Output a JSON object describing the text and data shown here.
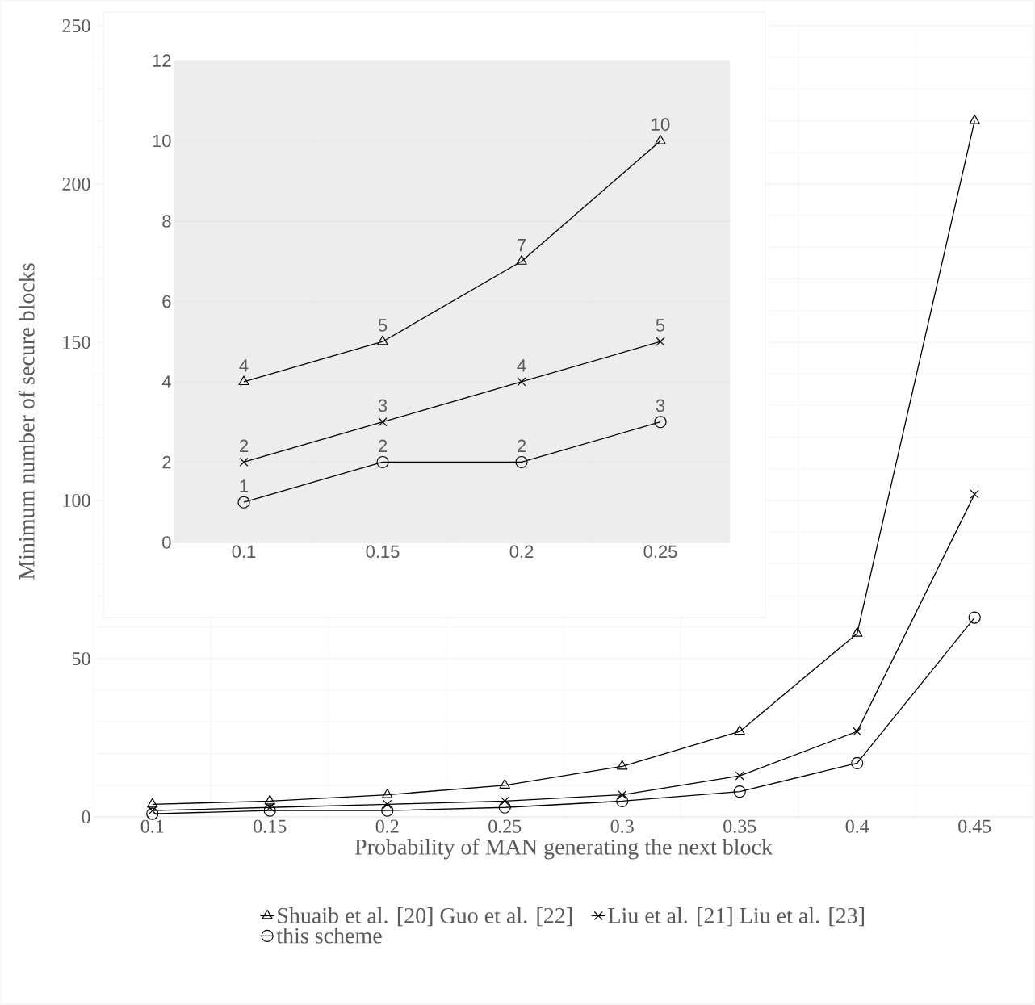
{
  "chart_data": [
    {
      "type": "line",
      "xlabel": "Probability of MAN generating the next block",
      "ylabel": "Minimum number of secure blocks",
      "categories": [
        "0.1",
        "0.15",
        "0.2",
        "0.25",
        "0.3",
        "0.35",
        "0.4",
        "0.45"
      ],
      "series": [
        {
          "name": "Shuaib et al. [20] Guo et al. [22]",
          "color": "#000000",
          "marker": "triangle",
          "values": [
            4,
            5,
            7,
            10,
            16,
            27,
            58,
            220
          ]
        },
        {
          "name": "Liu et al. [21] Liu et al. [23]",
          "color": "#000000",
          "marker": "cross",
          "values": [
            2,
            3,
            4,
            5,
            7,
            13,
            27,
            102
          ]
        },
        {
          "name": "this scheme",
          "color": "#000000",
          "marker": "circle",
          "values": [
            1,
            2,
            2,
            3,
            5,
            8,
            17,
            63
          ]
        }
      ],
      "ylim": [
        0,
        250
      ],
      "yticks": [
        0,
        50,
        100,
        150,
        200,
        250
      ],
      "grid": true,
      "legend": "bottom"
    },
    {
      "type": "line",
      "categories": [
        "0.1",
        "0.15",
        "0.2",
        "0.25"
      ],
      "series": [
        {
          "color": "#000000",
          "marker": "triangle",
          "values": [
            4,
            5,
            7,
            10
          ]
        },
        {
          "color": "#000000",
          "marker": "cross",
          "values": [
            2,
            3,
            4,
            5
          ]
        },
        {
          "color": "#000000",
          "marker": "circle",
          "values": [
            1,
            2,
            2,
            3
          ]
        }
      ],
      "ylim": [
        0,
        12
      ],
      "yticks": [
        0,
        2,
        4,
        6,
        8,
        10,
        12
      ],
      "grid": true,
      "data_labels": true
    }
  ]
}
